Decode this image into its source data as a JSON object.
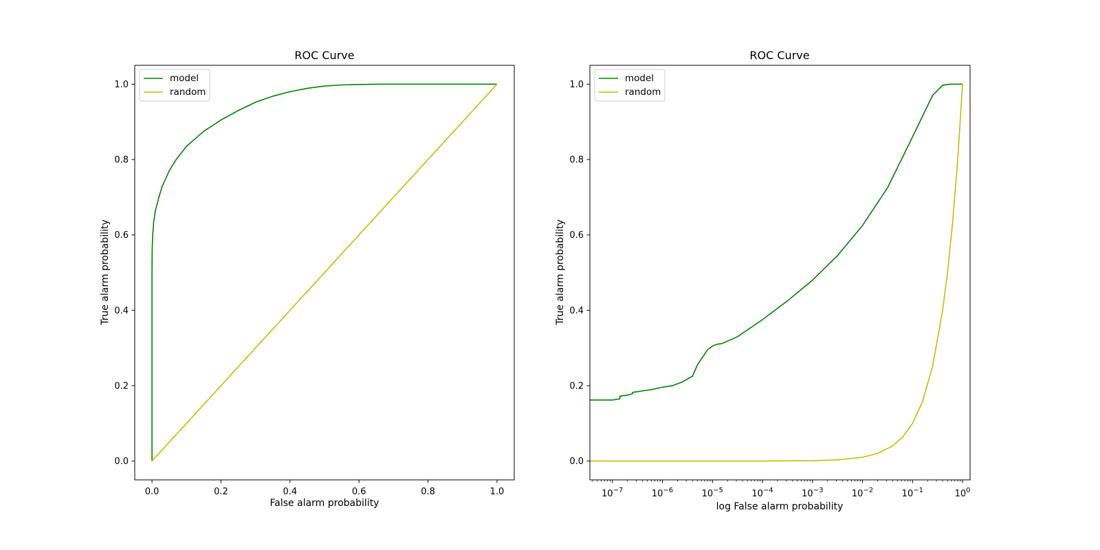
{
  "chart_data": [
    {
      "type": "line",
      "title": "ROC Curve",
      "xlabel": "False alarm probability",
      "ylabel": "True alarm probability",
      "xscale": "linear",
      "xlim": [
        -0.05,
        1.05
      ],
      "ylim": [
        -0.05,
        1.05
      ],
      "xticks": [
        0.0,
        0.2,
        0.4,
        0.6,
        0.8,
        1.0
      ],
      "xtick_labels": [
        "0.0",
        "0.2",
        "0.4",
        "0.6",
        "0.8",
        "1.0"
      ],
      "yticks": [
        0.0,
        0.2,
        0.4,
        0.6,
        0.8,
        1.0
      ],
      "ytick_labels": [
        "0.0",
        "0.2",
        "0.4",
        "0.6",
        "0.8",
        "1.0"
      ],
      "legend_position": "upper-left",
      "series": [
        {
          "name": "model",
          "color": "#008000",
          "x": [
            0.0,
            0.0,
            0.0,
            0.0005,
            0.002,
            0.005,
            0.01,
            0.02,
            0.03,
            0.05,
            0.07,
            0.1,
            0.15,
            0.2,
            0.25,
            0.3,
            0.35,
            0.4,
            0.45,
            0.5,
            0.55,
            0.6,
            0.65,
            0.7,
            0.8,
            0.9,
            1.0
          ],
          "y": [
            0.0,
            0.3,
            0.5,
            0.56,
            0.6,
            0.635,
            0.665,
            0.7,
            0.73,
            0.77,
            0.8,
            0.835,
            0.875,
            0.905,
            0.93,
            0.952,
            0.968,
            0.98,
            0.989,
            0.995,
            0.998,
            0.999,
            1.0,
            1.0,
            1.0,
            1.0,
            1.0
          ]
        },
        {
          "name": "random",
          "color": "#bfbf00",
          "x": [
            0.0,
            1.0
          ],
          "y": [
            0.0,
            1.0
          ]
        }
      ]
    },
    {
      "type": "line",
      "title": "ROC Curve",
      "xlabel": "log False alarm probability",
      "ylabel": "True alarm probability",
      "xscale": "log",
      "xlim_log10": [
        -7.45,
        0.15
      ],
      "ylim": [
        -0.05,
        1.05
      ],
      "xticks_log10": [
        -7,
        -6,
        -5,
        -4,
        -3,
        -2,
        -1,
        0
      ],
      "xtick_base": "10",
      "xtick_exponents": [
        "−7",
        "−6",
        "−5",
        "−4",
        "−3",
        "−2",
        "−1",
        "0"
      ],
      "yticks": [
        0.0,
        0.2,
        0.4,
        0.6,
        0.8,
        1.0
      ],
      "ytick_labels": [
        "0.0",
        "0.2",
        "0.4",
        "0.6",
        "0.8",
        "1.0"
      ],
      "legend_position": "upper-left",
      "series": [
        {
          "name": "model",
          "color": "#008000",
          "x_log10": [
            -7.45,
            -7.0,
            -6.85,
            -6.85,
            -6.7,
            -6.6,
            -6.6,
            -6.4,
            -6.2,
            -6.0,
            -5.8,
            -5.6,
            -5.4,
            -5.3,
            -5.2,
            -5.1,
            -5.0,
            -4.9,
            -4.8,
            -4.5,
            -4.0,
            -3.5,
            -3.0,
            -2.5,
            -2.0,
            -1.5,
            -1.0,
            -0.8,
            -0.6,
            -0.4,
            -0.25,
            -0.15,
            0.0
          ],
          "y": [
            0.162,
            0.162,
            0.165,
            0.172,
            0.175,
            0.178,
            0.182,
            0.186,
            0.19,
            0.196,
            0.2,
            0.21,
            0.225,
            0.255,
            0.275,
            0.295,
            0.305,
            0.31,
            0.312,
            0.33,
            0.375,
            0.425,
            0.48,
            0.545,
            0.625,
            0.725,
            0.86,
            0.915,
            0.97,
            0.997,
            1.0,
            1.0,
            1.0
          ]
        },
        {
          "name": "random",
          "color": "#bfbf00",
          "x_log10": [
            -7.45,
            -6.0,
            -5.0,
            -4.0,
            -3.0,
            -2.5,
            -2.0,
            -1.7,
            -1.4,
            -1.2,
            -1.0,
            -0.8,
            -0.6,
            -0.4,
            -0.3,
            -0.2,
            -0.1,
            0.0
          ],
          "y": [
            0.0,
            0.0,
            0.0,
            0.0001,
            0.001,
            0.003,
            0.01,
            0.02,
            0.04,
            0.063,
            0.1,
            0.158,
            0.251,
            0.398,
            0.501,
            0.631,
            0.794,
            1.0
          ]
        }
      ]
    }
  ]
}
